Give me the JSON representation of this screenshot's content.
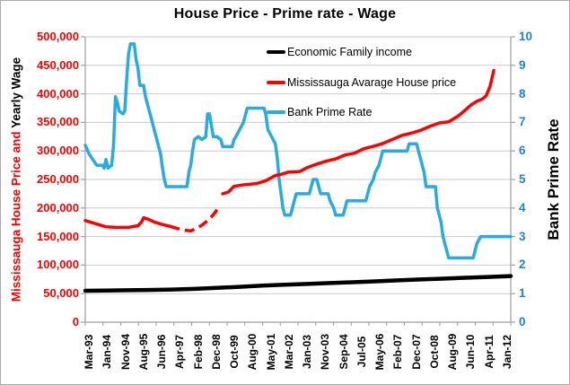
{
  "chart_data": {
    "type": "line",
    "title": "House Price - Prime rate - Wage",
    "y_left": {
      "title_red": "Mississauga House Price and",
      "title_black": "Yearly Wage",
      "min": 0,
      "max": 500000,
      "step": 50000,
      "tick_color": "#FF0000"
    },
    "y_right": {
      "title": "Bank Prime Rate",
      "min": 0,
      "max": 10,
      "step": 1,
      "tick_color": "#1E87C9"
    },
    "x_axis": {
      "start": "1993-03",
      "end": "2012-01",
      "labels": [
        "Mar-93",
        "Jan-94",
        "Nov-94",
        "Aug-95",
        "Jun-96",
        "Apr-97",
        "Feb-98",
        "Dec-98",
        "Oct-99",
        "Aug-00",
        "May-01",
        "Mar-02",
        "Jan-03",
        "Nov-03",
        "Sep-04",
        "Jul-05",
        "May-06",
        "Feb-07",
        "Dec-07",
        "Oct-08",
        "Aug-09",
        "Jun-10",
        "Apr-11",
        "Jan-12"
      ]
    },
    "colors": {
      "grid": "#C9C9C9",
      "axis": "#9E9E9E",
      "tick": "#9E9E9E"
    },
    "legend": [
      {
        "label": "Economic Family income",
        "color": "#000000"
      },
      {
        "label": "Mississauga Avarage House price",
        "color": "#FF0000"
      },
      {
        "label": "Bank Prime Rate",
        "color": "#29ABE2"
      }
    ],
    "series": [
      {
        "name": "Economic Family income",
        "axis": "left",
        "color": "#000000",
        "width": 4.5,
        "segments": [
          {
            "style": "solid",
            "points": [
              [
                "1993-03",
                55000
              ],
              [
                "1994-01",
                55400
              ],
              [
                "1995-01",
                56000
              ],
              [
                "1996-01",
                56500
              ],
              [
                "1997-01",
                57200
              ],
              [
                "1998-01",
                58300
              ],
              [
                "1999-01",
                60000
              ],
              [
                "2000-01",
                62000
              ],
              [
                "2001-01",
                64000
              ],
              [
                "2002-01",
                65500
              ],
              [
                "2003-01",
                67000
              ],
              [
                "2004-01",
                68500
              ],
              [
                "2005-01",
                70000
              ],
              [
                "2006-01",
                71500
              ],
              [
                "2007-01",
                73200
              ],
              [
                "2008-01",
                74800
              ],
              [
                "2009-01",
                76300
              ],
              [
                "2010-01",
                77800
              ],
              [
                "2011-01",
                79300
              ],
              [
                "2012-01",
                80800
              ]
            ]
          }
        ]
      },
      {
        "name": "Bank Prime Rate",
        "axis": "right",
        "color": "#29ABE2",
        "width": 3.5,
        "segments": [
          {
            "style": "solid",
            "points": [
              [
                "1993-03",
                6.2
              ],
              [
                "1993-05",
                5.9
              ],
              [
                "1993-07",
                5.7
              ],
              [
                "1993-09",
                5.5
              ],
              [
                "1993-12",
                5.5
              ],
              [
                "1994-01",
                5.4
              ],
              [
                "1994-02",
                5.7
              ],
              [
                "1994-03",
                5.4
              ],
              [
                "1994-05",
                5.5
              ],
              [
                "1994-06",
                6.2
              ],
              [
                "1994-07",
                7.9
              ],
              [
                "1994-08",
                7.7
              ],
              [
                "1994-09",
                7.4
              ],
              [
                "1994-11",
                7.3
              ],
              [
                "1994-12",
                7.4
              ],
              [
                "1995-01",
                8.5
              ],
              [
                "1995-02",
                9.4
              ],
              [
                "1995-03",
                9.75
              ],
              [
                "1995-05",
                9.75
              ],
              [
                "1995-06",
                9.2
              ],
              [
                "1995-07",
                8.9
              ],
              [
                "1995-08",
                8.3
              ],
              [
                "1995-10",
                8.3
              ],
              [
                "1995-11",
                7.9
              ],
              [
                "1996-01",
                7.4
              ],
              [
                "1996-03",
                6.9
              ],
              [
                "1996-05",
                6.4
              ],
              [
                "1996-07",
                5.9
              ],
              [
                "1996-08",
                5.4
              ],
              [
                "1996-09",
                5.0
              ],
              [
                "1996-10",
                4.75
              ],
              [
                "1997-09",
                4.75
              ],
              [
                "1997-10",
                5.25
              ],
              [
                "1997-11",
                5.5
              ],
              [
                "1997-12",
                6.0
              ],
              [
                "1998-01",
                6.4
              ],
              [
                "1998-03",
                6.5
              ],
              [
                "1998-05",
                6.4
              ],
              [
                "1998-07",
                6.5
              ],
              [
                "1998-08",
                7.3
              ],
              [
                "1998-09",
                7.3
              ],
              [
                "1998-10",
                6.9
              ],
              [
                "1998-11",
                6.5
              ],
              [
                "1999-01",
                6.5
              ],
              [
                "1999-03",
                6.4
              ],
              [
                "1999-04",
                6.15
              ],
              [
                "1999-09",
                6.15
              ],
              [
                "1999-10",
                6.4
              ],
              [
                "1999-11",
                6.5
              ],
              [
                "2000-01",
                6.75
              ],
              [
                "2000-03",
                7.0
              ],
              [
                "2000-05",
                7.5
              ],
              [
                "2001-02",
                7.5
              ],
              [
                "2001-03",
                7.25
              ],
              [
                "2001-04",
                6.75
              ],
              [
                "2001-06",
                6.5
              ],
              [
                "2001-08",
                6.25
              ],
              [
                "2001-09",
                5.75
              ],
              [
                "2001-10",
                5.0
              ],
              [
                "2001-11",
                4.5
              ],
              [
                "2001-12",
                4.0
              ],
              [
                "2002-01",
                3.75
              ],
              [
                "2002-04",
                3.75
              ],
              [
                "2002-05",
                4.0
              ],
              [
                "2002-06",
                4.25
              ],
              [
                "2002-07",
                4.5
              ],
              [
                "2003-02",
                4.5
              ],
              [
                "2003-03",
                4.75
              ],
              [
                "2003-04",
                5.0
              ],
              [
                "2003-06",
                5.0
              ],
              [
                "2003-07",
                4.75
              ],
              [
                "2003-08",
                4.5
              ],
              [
                "2003-12",
                4.5
              ],
              [
                "2004-01",
                4.25
              ],
              [
                "2004-03",
                4.0
              ],
              [
                "2004-04",
                3.75
              ],
              [
                "2004-08",
                3.75
              ],
              [
                "2004-09",
                4.0
              ],
              [
                "2004-10",
                4.25
              ],
              [
                "2005-08",
                4.25
              ],
              [
                "2005-09",
                4.5
              ],
              [
                "2005-10",
                4.75
              ],
              [
                "2005-12",
                5.0
              ],
              [
                "2006-01",
                5.25
              ],
              [
                "2006-03",
                5.5
              ],
              [
                "2006-04",
                5.75
              ],
              [
                "2006-05",
                6.0
              ],
              [
                "2007-06",
                6.0
              ],
              [
                "2007-07",
                6.25
              ],
              [
                "2007-11",
                6.25
              ],
              [
                "2007-12",
                6.0
              ],
              [
                "2008-01",
                5.75
              ],
              [
                "2008-03",
                5.25
              ],
              [
                "2008-04",
                4.75
              ],
              [
                "2008-09",
                4.75
              ],
              [
                "2008-10",
                4.0
              ],
              [
                "2008-12",
                3.5
              ],
              [
                "2009-01",
                3.0
              ],
              [
                "2009-03",
                2.5
              ],
              [
                "2009-04",
                2.25
              ],
              [
                "2010-05",
                2.25
              ],
              [
                "2010-06",
                2.5
              ],
              [
                "2010-07",
                2.75
              ],
              [
                "2010-09",
                3.0
              ],
              [
                "2012-01",
                3.0
              ]
            ]
          }
        ]
      },
      {
        "name": "Mississauga Avarage House price",
        "axis": "left",
        "color": "#FF0000",
        "width": 3.5,
        "segments": [
          {
            "style": "solid",
            "points": [
              [
                "1993-03",
                178000
              ],
              [
                "1993-06",
                175000
              ],
              [
                "1993-10",
                171000
              ],
              [
                "1994-02",
                167000
              ],
              [
                "1994-08",
                166000
              ],
              [
                "1995-02",
                166000
              ],
              [
                "1995-07",
                169000
              ],
              [
                "1995-09",
                176000
              ],
              [
                "1995-10",
                183000
              ],
              [
                "1995-12",
                181000
              ],
              [
                "1996-04",
                175000
              ],
              [
                "1996-08",
                171000
              ],
              [
                "1996-12",
                168000
              ]
            ]
          },
          {
            "style": "dashed",
            "points": [
              [
                "1996-12",
                168000
              ],
              [
                "1997-04",
                164000
              ],
              [
                "1997-08",
                161000
              ],
              [
                "1997-11",
                160000
              ],
              [
                "1998-02",
                164000
              ],
              [
                "1998-05",
                170000
              ],
              [
                "1998-08",
                178000
              ],
              [
                "1998-11",
                188000
              ],
              [
                "1999-01",
                197000
              ]
            ]
          },
          {
            "style": "solid",
            "points": [
              [
                "1999-04",
                225000
              ],
              [
                "1999-07",
                228000
              ],
              [
                "1999-10",
                238000
              ],
              [
                "2000-04",
                241000
              ],
              [
                "2000-10",
                243000
              ],
              [
                "2001-03",
                248000
              ],
              [
                "2001-08",
                257000
              ],
              [
                "2001-11",
                259000
              ],
              [
                "2002-03",
                263000
              ],
              [
                "2002-09",
                264000
              ],
              [
                "2003-01",
                271000
              ],
              [
                "2003-06",
                277000
              ],
              [
                "2003-11",
                282000
              ],
              [
                "2004-04",
                286000
              ],
              [
                "2004-09",
                293000
              ],
              [
                "2005-02",
                296000
              ],
              [
                "2005-07",
                304000
              ],
              [
                "2005-12",
                308000
              ],
              [
                "2006-05",
                313000
              ],
              [
                "2006-10",
                320000
              ],
              [
                "2007-03",
                327000
              ],
              [
                "2007-08",
                331000
              ],
              [
                "2008-01",
                336000
              ],
              [
                "2008-06",
                343000
              ],
              [
                "2008-11",
                349000
              ],
              [
                "2009-04",
                351000
              ],
              [
                "2009-09",
                361000
              ],
              [
                "2010-01",
                372000
              ],
              [
                "2010-04",
                381000
              ],
              [
                "2010-07",
                387000
              ],
              [
                "2010-10",
                391000
              ],
              [
                "2010-12",
                397000
              ],
              [
                "2011-02",
                413000
              ],
              [
                "2011-03",
                427000
              ],
              [
                "2011-04",
                441000
              ]
            ]
          }
        ]
      }
    ]
  }
}
